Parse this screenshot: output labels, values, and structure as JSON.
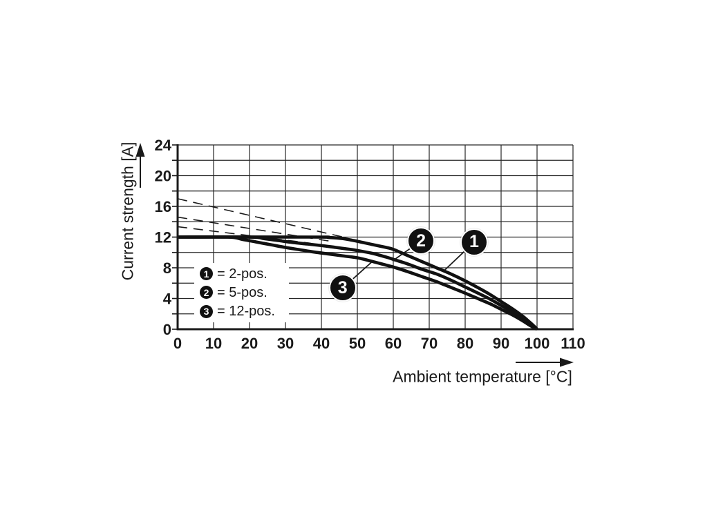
{
  "colors": {
    "ink": "#1a1a1a",
    "grid": "#262626",
    "curve": "#111111",
    "background": "#ffffff",
    "bubble_fill": "#111111",
    "bubble_text": "#ffffff",
    "legend_bg": "#ffffff"
  },
  "chart_data": {
    "type": "line",
    "title": "",
    "xlabel": "Ambient temperature [°C]",
    "ylabel": "Current strength [A]",
    "xlim": [
      0,
      110
    ],
    "ylim": [
      0,
      24
    ],
    "x_grid_step": 10,
    "y_grid_step": 2,
    "x_tick_labels": [
      "0",
      "10",
      "20",
      "30",
      "40",
      "50",
      "60",
      "70",
      "80",
      "90",
      "100",
      "110"
    ],
    "y_tick_labels": [
      "0",
      "4",
      "8",
      "12",
      "16",
      "20",
      "24"
    ],
    "y_tick_values": [
      0,
      4,
      8,
      12,
      16,
      20,
      24
    ],
    "y_minor_tick_values": [
      0,
      2,
      4,
      6,
      8,
      10,
      12,
      14,
      16,
      18,
      20,
      22,
      24
    ],
    "grid": true,
    "legend_position": "inside-lower-left",
    "series": [
      {
        "name": "2-pos.",
        "marker": "1",
        "style": "solid",
        "points": [
          [
            0,
            12
          ],
          [
            38,
            12
          ],
          [
            42,
            11.95
          ],
          [
            46,
            11.8
          ],
          [
            50,
            11.45
          ],
          [
            54,
            11.05
          ],
          [
            58,
            10.65
          ],
          [
            60,
            10.4
          ],
          [
            64,
            9.6
          ],
          [
            68,
            8.8
          ],
          [
            72,
            8.0
          ],
          [
            76,
            7.2
          ],
          [
            80,
            6.3
          ],
          [
            84,
            5.3
          ],
          [
            87,
            4.5
          ],
          [
            90,
            3.6
          ],
          [
            93,
            2.7
          ],
          [
            96,
            1.7
          ],
          [
            98,
            0.9
          ],
          [
            99.5,
            0.25
          ],
          [
            100,
            0
          ]
        ]
      },
      {
        "name": "5-pos.",
        "marker": "2",
        "style": "solid",
        "points": [
          [
            0,
            12
          ],
          [
            20,
            12
          ],
          [
            24,
            11.8
          ],
          [
            28,
            11.55
          ],
          [
            32,
            11.3
          ],
          [
            36,
            11.1
          ],
          [
            40,
            10.9
          ],
          [
            44,
            10.65
          ],
          [
            48,
            10.4
          ],
          [
            50,
            10.25
          ],
          [
            54,
            9.9
          ],
          [
            58,
            9.4
          ],
          [
            60,
            9.1
          ],
          [
            64,
            8.5
          ],
          [
            68,
            7.8
          ],
          [
            72,
            7.2
          ],
          [
            76,
            6.4
          ],
          [
            80,
            5.5
          ],
          [
            84,
            4.6
          ],
          [
            87,
            3.9
          ],
          [
            90,
            3.1
          ],
          [
            93,
            2.3
          ],
          [
            96,
            1.4
          ],
          [
            98,
            0.7
          ],
          [
            100,
            0
          ]
        ]
      },
      {
        "name": "12-pos.",
        "marker": "3",
        "style": "solid",
        "points": [
          [
            0,
            12
          ],
          [
            14,
            12
          ],
          [
            18,
            11.7
          ],
          [
            22,
            11.35
          ],
          [
            26,
            11.0
          ],
          [
            30,
            10.65
          ],
          [
            34,
            10.35
          ],
          [
            38,
            10.05
          ],
          [
            42,
            9.8
          ],
          [
            46,
            9.55
          ],
          [
            50,
            9.3
          ],
          [
            54,
            8.85
          ],
          [
            58,
            8.35
          ],
          [
            60,
            8.1
          ],
          [
            64,
            7.5
          ],
          [
            68,
            6.85
          ],
          [
            72,
            6.2
          ],
          [
            76,
            5.45
          ],
          [
            80,
            4.7
          ],
          [
            84,
            3.9
          ],
          [
            87,
            3.3
          ],
          [
            90,
            2.6
          ],
          [
            93,
            1.9
          ],
          [
            96,
            1.1
          ],
          [
            98,
            0.5
          ],
          [
            100,
            0
          ]
        ]
      }
    ],
    "dashed_extensions": [
      {
        "for_series": "2-pos.",
        "points": [
          [
            0,
            17.0
          ],
          [
            47,
            11.9
          ]
        ]
      },
      {
        "for_series": "5-pos.",
        "points": [
          [
            0,
            14.6
          ],
          [
            42,
            11.5
          ]
        ]
      },
      {
        "for_series": "12-pos.",
        "points": [
          [
            0,
            13.35
          ],
          [
            37,
            11.2
          ]
        ]
      }
    ],
    "callouts": [
      {
        "num": "1",
        "bubble_at": [
          82.5,
          11.35
        ],
        "target": [
          74.2,
          7.65
        ]
      },
      {
        "num": "2",
        "bubble_at": [
          67.7,
          11.5
        ],
        "target": [
          59.8,
          8.9
        ]
      },
      {
        "num": "3",
        "bubble_at": [
          45.9,
          5.35
        ],
        "target": [
          54.0,
          8.75
        ]
      }
    ],
    "legend": [
      {
        "num": "1",
        "label": "= 2-pos."
      },
      {
        "num": "2",
        "label": "= 5-pos."
      },
      {
        "num": "3",
        "label": "= 12-pos."
      }
    ]
  }
}
